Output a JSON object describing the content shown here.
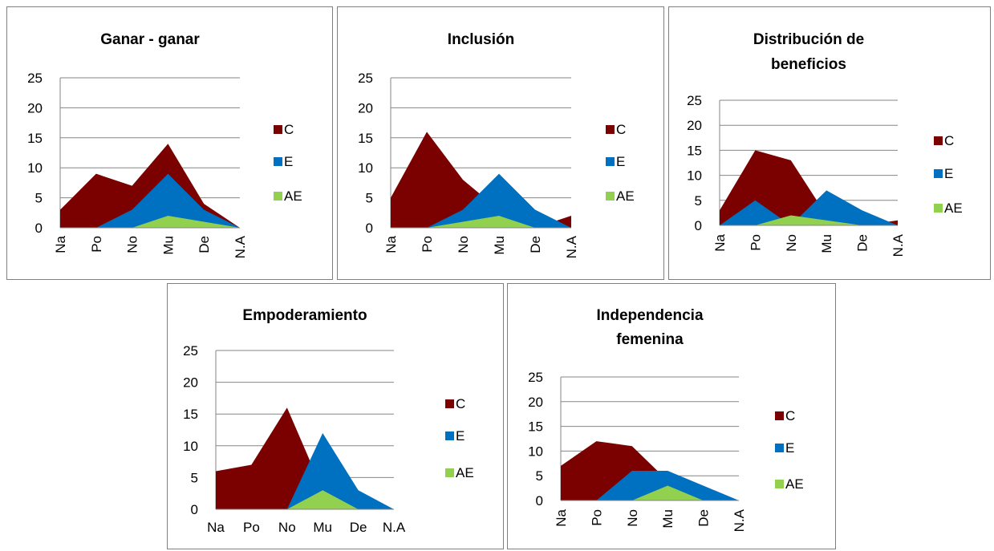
{
  "colors": {
    "C": "#7b0000",
    "E": "#0070c0",
    "AE": "#92d050",
    "grid": "#868686",
    "text": "#000000"
  },
  "chart_data": [
    {
      "type": "area",
      "title": "Ganar - ganar",
      "categories": [
        "Na",
        "Po",
        "No",
        "Mu",
        "De",
        "N.A"
      ],
      "ylim": [
        0,
        25
      ],
      "yticks": [
        "0",
        "5",
        "10",
        "15",
        "20",
        "25"
      ],
      "grid": true,
      "legend": "right",
      "series": [
        {
          "name": "C",
          "values": [
            3,
            9,
            7,
            14,
            4,
            0
          ]
        },
        {
          "name": "E",
          "values": [
            0,
            0,
            3,
            9,
            3,
            0
          ]
        },
        {
          "name": "AE",
          "values": [
            0,
            0,
            0,
            2,
            1,
            0
          ]
        }
      ]
    },
    {
      "type": "area",
      "title": "Inclusión",
      "categories": [
        "Na",
        "Po",
        "No",
        "Mu",
        "De",
        "N.A"
      ],
      "ylim": [
        0,
        25
      ],
      "yticks": [
        "0",
        "5",
        "10",
        "15",
        "20",
        "25"
      ],
      "grid": true,
      "legend": "right",
      "series": [
        {
          "name": "C",
          "values": [
            5,
            16,
            8,
            3,
            0,
            2
          ]
        },
        {
          "name": "E",
          "values": [
            0,
            0,
            3,
            9,
            3,
            0
          ]
        },
        {
          "name": "AE",
          "values": [
            0,
            0,
            1,
            2,
            0,
            0
          ]
        }
      ]
    },
    {
      "type": "area",
      "title": "Distribución de beneficios",
      "title_lines": [
        "Distribución de",
        "beneficios"
      ],
      "categories": [
        "Na",
        "Po",
        "No",
        "Mu",
        "De",
        "N.A"
      ],
      "ylim": [
        0,
        25
      ],
      "yticks": [
        "0",
        "5",
        "10",
        "15",
        "20",
        "25"
      ],
      "grid": true,
      "legend": "right",
      "series": [
        {
          "name": "C",
          "values": [
            3,
            15,
            13,
            2,
            0,
            1
          ]
        },
        {
          "name": "E",
          "values": [
            0,
            5,
            0,
            7,
            3,
            0
          ]
        },
        {
          "name": "AE",
          "values": [
            0,
            0,
            2,
            1,
            0,
            0
          ]
        }
      ]
    },
    {
      "type": "area",
      "title": "Empoderamiento",
      "categories": [
        "Na",
        "Po",
        "No",
        "Mu",
        "De",
        "N.A"
      ],
      "ylim": [
        0,
        25
      ],
      "yticks": [
        "0",
        "5",
        "10",
        "15",
        "20",
        "25"
      ],
      "grid": true,
      "legend": "right",
      "series": [
        {
          "name": "C",
          "values": [
            6,
            7,
            16,
            3,
            0,
            0
          ]
        },
        {
          "name": "E",
          "values": [
            0,
            0,
            0,
            12,
            3,
            0
          ]
        },
        {
          "name": "AE",
          "values": [
            0,
            0,
            0,
            3,
            0,
            0
          ]
        }
      ]
    },
    {
      "type": "area",
      "title": "Independencia femenina",
      "title_lines": [
        "Independencia",
        "femenina"
      ],
      "categories": [
        "Na",
        "Po",
        "No",
        "Mu",
        "De",
        "N.A"
      ],
      "ylim": [
        0,
        25
      ],
      "yticks": [
        "0",
        "5",
        "10",
        "15",
        "20",
        "25"
      ],
      "grid": true,
      "legend": "right",
      "series": [
        {
          "name": "C",
          "values": [
            7,
            12,
            11,
            4,
            0,
            0
          ]
        },
        {
          "name": "E",
          "values": [
            0,
            0,
            6,
            6,
            3,
            0
          ]
        },
        {
          "name": "AE",
          "values": [
            0,
            0,
            0,
            3,
            0,
            0
          ]
        }
      ]
    }
  ]
}
